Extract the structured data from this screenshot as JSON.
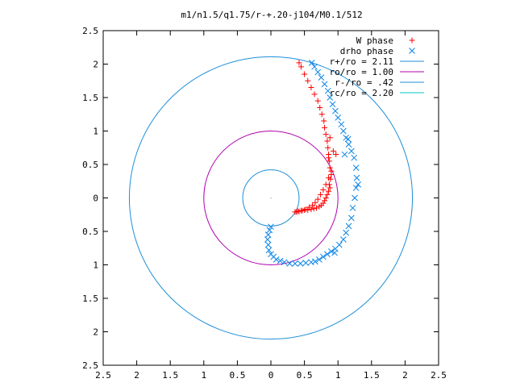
{
  "chart_data": {
    "type": "scatter",
    "title": "m1/n1.5/q1.75/r-+.20-j104/M0.1/512",
    "xlabel": "",
    "ylabel": "",
    "xlim": [
      -2.5,
      2.5
    ],
    "ylim": [
      -2.5,
      2.5
    ],
    "x_ticks": [
      -2.5,
      -2,
      -1.5,
      -1,
      -0.5,
      0,
      0.5,
      1,
      1.5,
      2,
      2.5
    ],
    "y_ticks": [
      -2.5,
      -2,
      -1.5,
      -1,
      -0.5,
      0,
      0.5,
      1,
      1.5,
      2,
      2.5
    ],
    "x_tick_labels": [
      "2.5",
      "2",
      "1.5",
      "1",
      "0.5",
      "0",
      "0.5",
      "1",
      "1.5",
      "2",
      "2.5"
    ],
    "y_tick_labels": [
      "2.5",
      "2",
      "1.5",
      "1",
      "0.5",
      "0",
      "0.5",
      "1",
      "1.5",
      "2",
      "2.5"
    ],
    "grid": false,
    "legend_position": "top-right",
    "series": [
      {
        "name": "W phase",
        "marker": "plus",
        "color": "#ff0000",
        "x": [
          0.42,
          0.45,
          0.5,
          0.55,
          0.6,
          0.65,
          0.7,
          0.73,
          0.76,
          0.79,
          0.8,
          0.82,
          0.84,
          0.85,
          0.86,
          0.87,
          0.88,
          0.9,
          0.89,
          0.87,
          0.88,
          0.86,
          0.84,
          0.82,
          0.8,
          0.78,
          0.75,
          0.72,
          0.68,
          0.64,
          0.6,
          0.55,
          0.5,
          0.45,
          0.4,
          0.36,
          0.38,
          0.42,
          0.47,
          0.52,
          0.57,
          0.62,
          0.66,
          0.7,
          0.74,
          0.78,
          0.82,
          0.86,
          0.9,
          0.86,
          0.93,
          0.97,
          0.88
        ],
        "y": [
          2.02,
          1.96,
          1.85,
          1.75,
          1.65,
          1.55,
          1.45,
          1.35,
          1.25,
          1.15,
          1.05,
          0.95,
          0.85,
          0.75,
          0.65,
          0.55,
          0.45,
          0.35,
          0.28,
          0.2,
          0.15,
          0.1,
          0.05,
          0.0,
          -0.04,
          -0.08,
          -0.11,
          -0.13,
          -0.15,
          -0.16,
          -0.17,
          -0.18,
          -0.18,
          -0.19,
          -0.2,
          -0.21,
          -0.21,
          -0.2,
          -0.19,
          -0.17,
          -0.14,
          -0.11,
          -0.07,
          -0.02,
          0.05,
          0.12,
          0.2,
          0.3,
          0.4,
          0.6,
          0.7,
          0.65,
          0.9
        ]
      },
      {
        "name": "drho phase",
        "marker": "cross",
        "color": "#0a84e8",
        "x": [
          0.61,
          0.65,
          0.7,
          0.75,
          0.8,
          0.85,
          0.88,
          0.92,
          0.96,
          1.0,
          1.05,
          1.08,
          1.12,
          1.16,
          1.2,
          1.24,
          1.27,
          1.28,
          1.27,
          1.25,
          1.22,
          1.2,
          1.16,
          1.12,
          1.08,
          1.02,
          0.96,
          0.9,
          0.84,
          0.78,
          0.72,
          0.66,
          0.6,
          0.52,
          0.44,
          0.36,
          0.28,
          0.2,
          0.14,
          0.08,
          0.04,
          0.0,
          -0.03,
          -0.04,
          -0.05,
          -0.04,
          -0.02,
          0.0,
          1.1,
          1.15,
          1.3,
          0.95
        ],
        "y": [
          2.02,
          1.96,
          1.88,
          1.8,
          1.7,
          1.6,
          1.5,
          1.4,
          1.3,
          1.2,
          1.1,
          1.0,
          0.9,
          0.8,
          0.7,
          0.6,
          0.45,
          0.3,
          0.15,
          0.0,
          -0.15,
          -0.3,
          -0.42,
          -0.52,
          -0.62,
          -0.7,
          -0.76,
          -0.8,
          -0.84,
          -0.88,
          -0.92,
          -0.95,
          -0.96,
          -0.97,
          -0.98,
          -0.98,
          -0.98,
          -0.96,
          -0.94,
          -0.92,
          -0.88,
          -0.84,
          -0.78,
          -0.7,
          -0.62,
          -0.55,
          -0.48,
          -0.43,
          0.65,
          0.88,
          0.2,
          -0.82
        ]
      }
    ],
    "circles": [
      {
        "name": "r+/ro = 2.11",
        "radius": 2.11,
        "color": "#1f8fd8"
      },
      {
        "name": "ro/ro = 1.00",
        "radius": 1.0,
        "color": "#b000b0"
      },
      {
        "name": "r-/ro = .42",
        "radius": 0.42,
        "color": "#1f8fd8"
      },
      {
        "name": "rc/ro = 2.20",
        "radius": 2.2,
        "color": "#00c8c8"
      }
    ]
  }
}
